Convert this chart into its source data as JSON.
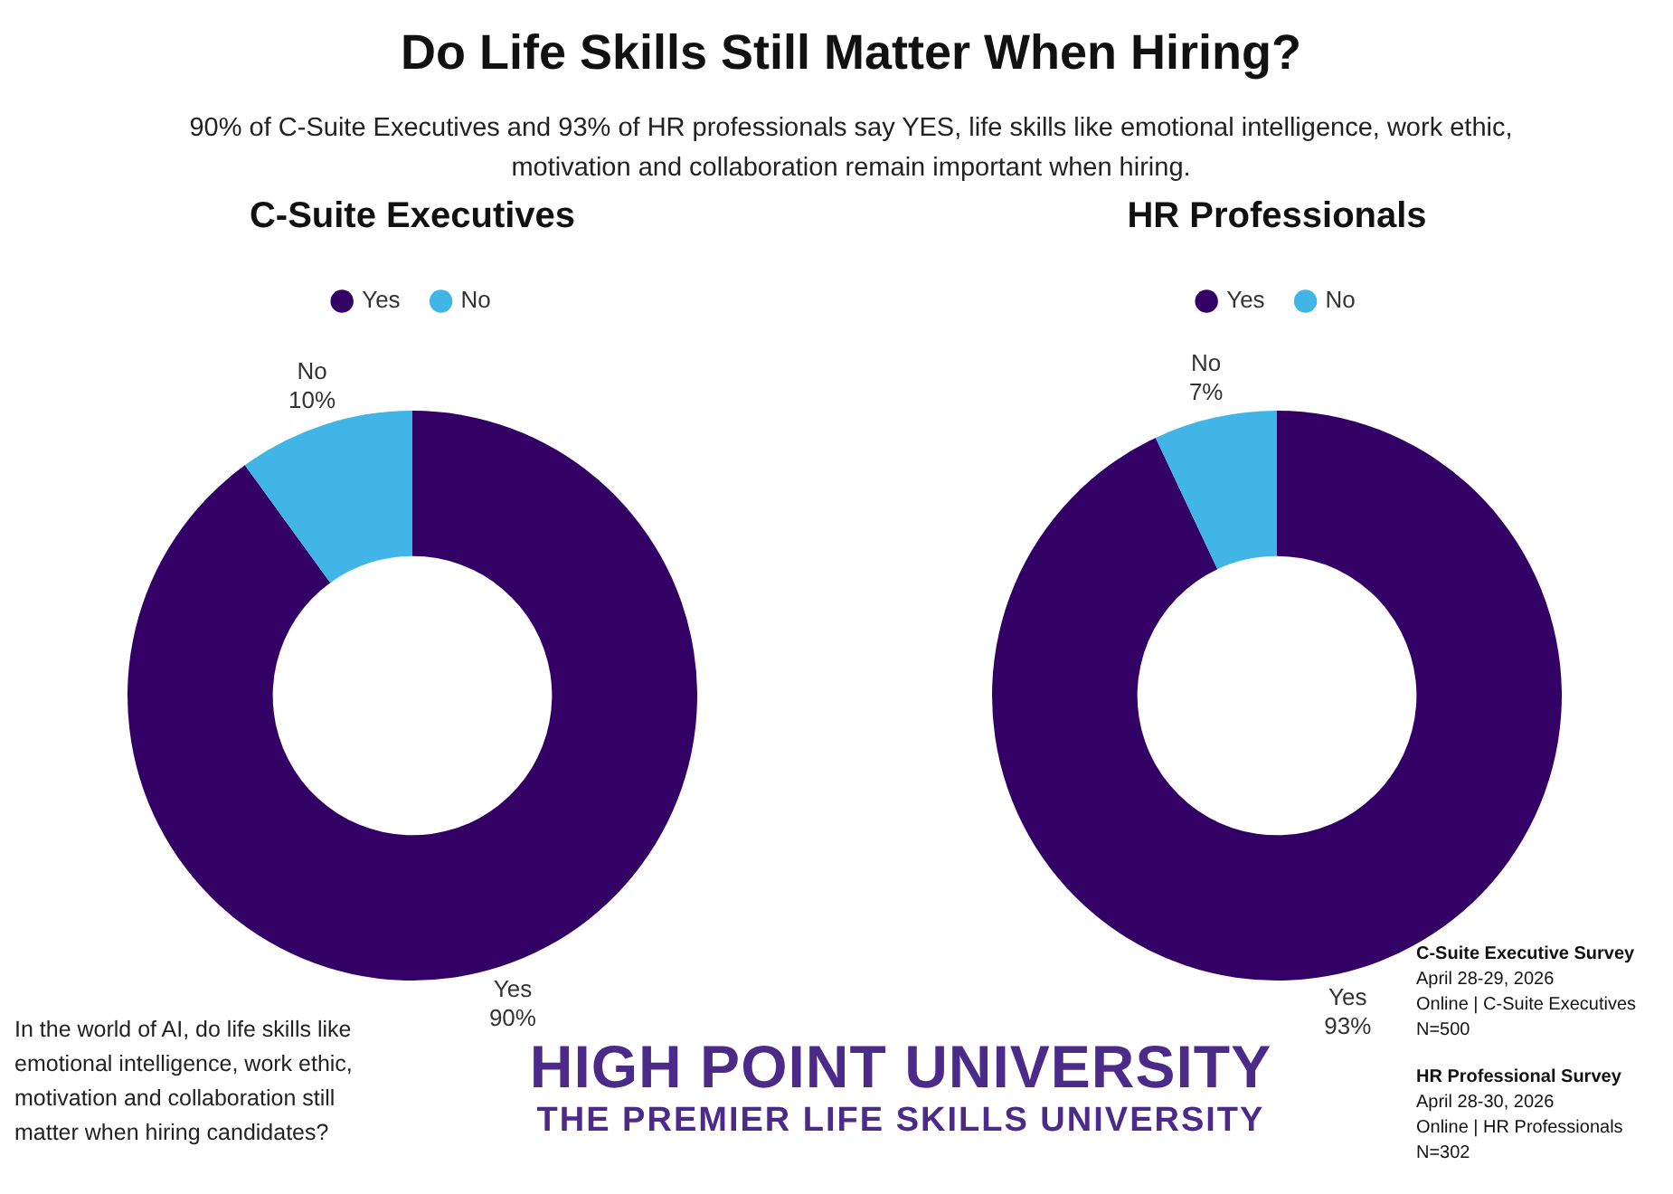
{
  "chart_data": [
    {
      "type": "donut",
      "title": "C-Suite Executives",
      "categories": [
        "Yes",
        "No"
      ],
      "values": [
        90,
        10
      ],
      "colors": [
        "#330066",
        "#41b6e6"
      ],
      "value_labels": [
        "90%",
        "10%"
      ],
      "legend": "top",
      "annotations": [
        "Do Life Skills Still Matter When Hiring?",
        "90% of C-Suite Executives and 93% of HR professionals say YES, life skills like emotional intelligence, work ethic, motivation and collaboration remain important when hiring.",
        "In the world of AI, do life skills like emotional intelligence, work ethic, motivation and collaboration still matter when hiring candidates?",
        "HIGH POINT UNIVERSITY",
        "THE PREMIER LIFE SKILLS UNIVERSITY"
      ]
    },
    {
      "type": "donut",
      "title": "HR Professionals",
      "categories": [
        "Yes",
        "No"
      ],
      "values": [
        93,
        7
      ],
      "colors": [
        "#330066",
        "#41b6e6"
      ],
      "value_labels": [
        "93%",
        "7%"
      ],
      "legend": "top",
      "annotations": [
        "C-Suite Executive Survey",
        "April 28-29, 2026",
        "Online | C-Suite Executives",
        "N=500",
        "HR Professional Survey",
        "April 28-30, 2026",
        "Online | HR Professionals",
        "N=302"
      ]
    }
  ]
}
